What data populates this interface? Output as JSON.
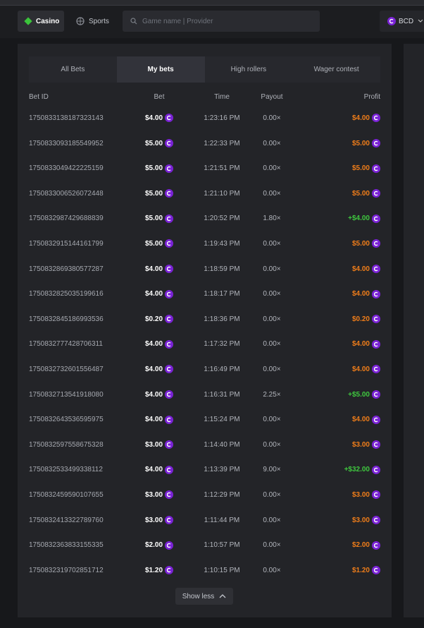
{
  "header": {
    "tabs": [
      "Casino",
      "Sports"
    ],
    "search_placeholder": "Game name | Provider",
    "currency": "BCD"
  },
  "bet_tabs": {
    "items": [
      "All Bets",
      "My bets",
      "High rollers",
      "Wager contest"
    ],
    "active": 1
  },
  "table": {
    "columns": [
      "Bet ID",
      "Bet",
      "Time",
      "Payout",
      "Profit"
    ],
    "rows": [
      {
        "bet_id": "1750833138187323143",
        "bet": "$4.00",
        "time": "1:23:16 PM",
        "payout": "0.00×",
        "profit": "$4.00"
      },
      {
        "bet_id": "1750833093185549952",
        "bet": "$5.00",
        "time": "1:22:33 PM",
        "payout": "0.00×",
        "profit": "$5.00"
      },
      {
        "bet_id": "1750833049422225159",
        "bet": "$5.00",
        "time": "1:21:51 PM",
        "payout": "0.00×",
        "profit": "$5.00"
      },
      {
        "bet_id": "1750833006526072448",
        "bet": "$5.00",
        "time": "1:21:10 PM",
        "payout": "0.00×",
        "profit": "$5.00"
      },
      {
        "bet_id": "1750832987429688839",
        "bet": "$5.00",
        "time": "1:20:52 PM",
        "payout": "1.80×",
        "profit": "+$4.00"
      },
      {
        "bet_id": "1750832915144161799",
        "bet": "$5.00",
        "time": "1:19:43 PM",
        "payout": "0.00×",
        "profit": "$5.00"
      },
      {
        "bet_id": "1750832869380577287",
        "bet": "$4.00",
        "time": "1:18:59 PM",
        "payout": "0.00×",
        "profit": "$4.00"
      },
      {
        "bet_id": "1750832825035199616",
        "bet": "$4.00",
        "time": "1:18:17 PM",
        "payout": "0.00×",
        "profit": "$4.00"
      },
      {
        "bet_id": "1750832845186993536",
        "bet": "$0.20",
        "time": "1:18:36 PM",
        "payout": "0.00×",
        "profit": "$0.20"
      },
      {
        "bet_id": "1750832777428706311",
        "bet": "$4.00",
        "time": "1:17:32 PM",
        "payout": "0.00×",
        "profit": "$4.00"
      },
      {
        "bet_id": "1750832732601556487",
        "bet": "$4.00",
        "time": "1:16:49 PM",
        "payout": "0.00×",
        "profit": "$4.00"
      },
      {
        "bet_id": "1750832713541918080",
        "bet": "$4.00",
        "time": "1:16:31 PM",
        "payout": "2.25×",
        "profit": "+$5.00"
      },
      {
        "bet_id": "1750832643536595975",
        "bet": "$4.00",
        "time": "1:15:24 PM",
        "payout": "0.00×",
        "profit": "$4.00"
      },
      {
        "bet_id": "1750832597558675328",
        "bet": "$3.00",
        "time": "1:14:40 PM",
        "payout": "0.00×",
        "profit": "$3.00"
      },
      {
        "bet_id": "1750832533499338112",
        "bet": "$4.00",
        "time": "1:13:39 PM",
        "payout": "9.00×",
        "profit": "+$32.00"
      },
      {
        "bet_id": "1750832459590107655",
        "bet": "$3.00",
        "time": "1:12:29 PM",
        "payout": "0.00×",
        "profit": "$3.00"
      },
      {
        "bet_id": "1750832413322789760",
        "bet": "$3.00",
        "time": "1:11:44 PM",
        "payout": "0.00×",
        "profit": "$3.00"
      },
      {
        "bet_id": "1750832363833155335",
        "bet": "$2.00",
        "time": "1:10:57 PM",
        "payout": "0.00×",
        "profit": "$2.00"
      },
      {
        "bet_id": "1750832319702851712",
        "bet": "$1.20",
        "time": "1:10:15 PM",
        "payout": "0.00×",
        "profit": "$1.20"
      }
    ]
  },
  "show_less": "Show less"
}
